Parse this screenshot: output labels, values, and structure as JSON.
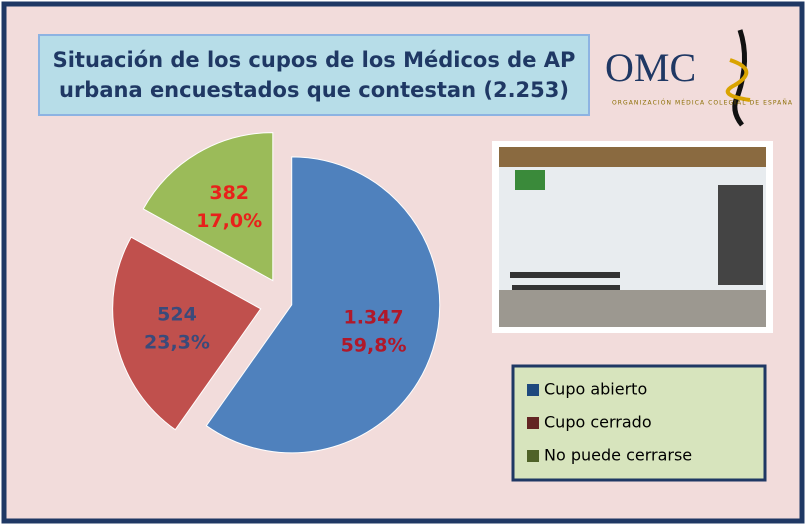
{
  "chart_data": {
    "type": "pie",
    "title": "Situación de los cupos de los Médicos de AP urbana encuestados que contestan (2.253)",
    "categories": [
      "Cupo abierto",
      "Cupo cerrado",
      "No puede cerrarse"
    ],
    "values": [
      1347,
      524,
      382
    ],
    "value_labels": [
      "1.347",
      "524",
      "382"
    ],
    "percentages": [
      59.8,
      23.3,
      17.0
    ],
    "percentage_labels": [
      "59,8%",
      "23,3%",
      "17,0%"
    ],
    "colors": [
      "#4f81bd",
      "#c0504d",
      "#9bbb59"
    ],
    "legend_colors": [
      "#1f497d",
      "#632523",
      "#4f6228"
    ],
    "label_colors": [
      "#b0182a",
      "#3b4a7a",
      "#e8211b"
    ]
  },
  "logo": {
    "text": "OMC",
    "caption": "ORGANIZACIÓN MÉDICA COLEGIAL DE ESPAÑA"
  }
}
